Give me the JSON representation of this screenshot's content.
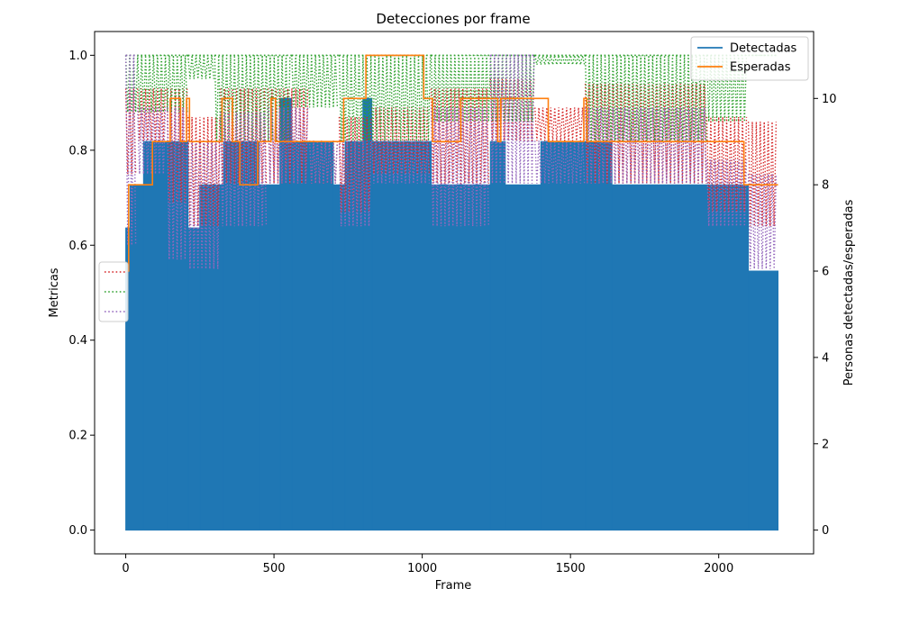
{
  "chart_data": {
    "type": "line",
    "title": "Detecciones por frame",
    "xlabel": "Frame",
    "ylabel_left": "Metricas",
    "ylabel_right": "Personas detectadas/esperadas",
    "xlim": [
      -105,
      2320
    ],
    "ylim_left": [
      -0.05,
      1.05
    ],
    "ylim_right": [
      -0.55,
      11.55
    ],
    "x_ticks": [
      0,
      500,
      1000,
      1500,
      2000
    ],
    "y_ticks_left": [
      0.0,
      0.2,
      0.4,
      0.6,
      0.8,
      1.0
    ],
    "y_ticks_right": [
      0,
      2,
      4,
      6,
      8,
      10
    ],
    "grid": false,
    "legend_right": {
      "placement": "top-right",
      "entries": [
        {
          "label": "Detectadas",
          "color": "#1f77b4"
        },
        {
          "label": "Esperadas",
          "color": "#ff7f0e"
        }
      ]
    },
    "legend_left": {
      "placement": "center-left",
      "entries": [
        {
          "color": "#d62728",
          "style": "dotted"
        },
        {
          "color": "#2ca02c",
          "style": "dotted"
        },
        {
          "color": "#9467bd",
          "style": "dotted"
        }
      ]
    },
    "series": [
      {
        "name": "Detectadas",
        "axis": "right",
        "color": "#1f77b4",
        "style": "oscillating",
        "x_range": [
          0,
          2200
        ],
        "segments": [
          {
            "x": [
              0,
              15
            ],
            "peak": 7
          },
          {
            "x": [
              15,
              60
            ],
            "peak": 8
          },
          {
            "x": [
              60,
              140
            ],
            "peak": 9
          },
          {
            "x": [
              140,
              210
            ],
            "peak": 9
          },
          {
            "x": [
              210,
              250
            ],
            "peak": 7
          },
          {
            "x": [
              250,
              330
            ],
            "peak": 8
          },
          {
            "x": [
              330,
              450
            ],
            "peak": 9
          },
          {
            "x": [
              450,
              520
            ],
            "peak": 8
          },
          {
            "x": [
              520,
              560
            ],
            "peak": 10
          },
          {
            "x": [
              560,
              700
            ],
            "peak": 9
          },
          {
            "x": [
              700,
              740
            ],
            "peak": 8
          },
          {
            "x": [
              740,
              800
            ],
            "peak": 9
          },
          {
            "x": [
              800,
              830
            ],
            "peak": 10
          },
          {
            "x": [
              830,
              1030
            ],
            "peak": 9
          },
          {
            "x": [
              1030,
              1230
            ],
            "peak": 8
          },
          {
            "x": [
              1230,
              1280
            ],
            "peak": 9
          },
          {
            "x": [
              1280,
              1400
            ],
            "peak": 8
          },
          {
            "x": [
              1400,
              1550
            ],
            "peak": 9
          },
          {
            "x": [
              1550,
              1640
            ],
            "peak": 9
          },
          {
            "x": [
              1640,
              1960
            ],
            "peak": 8
          },
          {
            "x": [
              1960,
              2100
            ],
            "peak": 8
          },
          {
            "x": [
              2100,
              2200
            ],
            "peak": 6
          }
        ]
      },
      {
        "name": "Esperadas",
        "axis": "right",
        "color": "#ff7f0e",
        "style": "step",
        "x": [
          0,
          10,
          40,
          45,
          60,
          90,
          100,
          130,
          150,
          165,
          185,
          205,
          215,
          320,
          325,
          350,
          360,
          380,
          385,
          440,
          445,
          480,
          490,
          500,
          505,
          730,
          735,
          800,
          810,
          920,
          925,
          1000,
          1005,
          1030,
          1035,
          1125,
          1130,
          1250,
          1255,
          1260,
          1265,
          1370,
          1375,
          1420,
          1425,
          1540,
          1545,
          1550,
          1555,
          2080,
          2085,
          2095,
          2100,
          2200
        ],
        "y": [
          6,
          8,
          8,
          8,
          8,
          9,
          9,
          9,
          10,
          10,
          9,
          10,
          9,
          9,
          10,
          10,
          9,
          9,
          8,
          8,
          9,
          9,
          10,
          10,
          9,
          9,
          10,
          10,
          11,
          11,
          11,
          11,
          10,
          10,
          9,
          9,
          10,
          10,
          9,
          9,
          10,
          10,
          10,
          10,
          9,
          9,
          10,
          10,
          9,
          9,
          8,
          8,
          8,
          8
        ]
      },
      {
        "name": "",
        "axis": "left",
        "color": "#d62728",
        "style": "dotted-band",
        "segments": [
          {
            "x": [
              0,
              40
            ],
            "lo": 0.75,
            "hi": 0.93
          },
          {
            "x": [
              40,
              140
            ],
            "lo": 0.82,
            "hi": 0.93
          },
          {
            "x": [
              140,
              210
            ],
            "lo": 0.69,
            "hi": 0.93
          },
          {
            "x": [
              210,
              320
            ],
            "lo": 0.64,
            "hi": 0.87
          },
          {
            "x": [
              320,
              480
            ],
            "lo": 0.73,
            "hi": 0.93
          },
          {
            "x": [
              480,
              620
            ],
            "lo": 0.73,
            "hi": 0.93
          },
          {
            "x": [
              620,
              720
            ],
            "lo": 0.73,
            "hi": 0.82
          },
          {
            "x": [
              720,
              830
            ],
            "lo": 0.67,
            "hi": 0.87
          },
          {
            "x": [
              830,
              1030
            ],
            "lo": 0.75,
            "hi": 0.89
          },
          {
            "x": [
              1030,
              1230
            ],
            "lo": 0.73,
            "hi": 0.93
          },
          {
            "x": [
              1230,
              1380
            ],
            "lo": 0.82,
            "hi": 0.95
          },
          {
            "x": [
              1380,
              1550
            ],
            "lo": 0.82,
            "hi": 0.89
          },
          {
            "x": [
              1550,
              1960
            ],
            "lo": 0.73,
            "hi": 0.94
          },
          {
            "x": [
              1960,
              2100
            ],
            "lo": 0.67,
            "hi": 0.87
          },
          {
            "x": [
              2100,
              2200
            ],
            "lo": 0.64,
            "hi": 0.86
          }
        ]
      },
      {
        "name": "",
        "axis": "left",
        "color": "#2ca02c",
        "style": "dotted-band",
        "segments": [
          {
            "x": [
              0,
              210
            ],
            "lo": 0.88,
            "hi": 1.0
          },
          {
            "x": [
              210,
              300
            ],
            "lo": 0.95,
            "hi": 1.0
          },
          {
            "x": [
              300,
              560
            ],
            "lo": 0.82,
            "hi": 1.0
          },
          {
            "x": [
              560,
              720
            ],
            "lo": 0.89,
            "hi": 1.0
          },
          {
            "x": [
              720,
              1030
            ],
            "lo": 0.82,
            "hi": 1.0
          },
          {
            "x": [
              1030,
              1380
            ],
            "lo": 0.86,
            "hi": 1.0
          },
          {
            "x": [
              1380,
              1550
            ],
            "lo": 0.98,
            "hi": 1.0
          },
          {
            "x": [
              1550,
              1960
            ],
            "lo": 0.82,
            "hi": 1.0
          },
          {
            "x": [
              1960,
              2100
            ],
            "lo": 0.86,
            "hi": 1.0
          },
          {
            "x": [
              2100,
              2200
            ],
            "lo": 1.0,
            "hi": 1.0
          }
        ]
      },
      {
        "name": "",
        "axis": "left",
        "color": "#9467bd",
        "style": "dotted-band",
        "segments": [
          {
            "x": [
              0,
              40
            ],
            "lo": 0.6,
            "hi": 1.0
          },
          {
            "x": [
              40,
              140
            ],
            "lo": 0.75,
            "hi": 0.89
          },
          {
            "x": [
              140,
              210
            ],
            "lo": 0.57,
            "hi": 0.89
          },
          {
            "x": [
              210,
              320
            ],
            "lo": 0.55,
            "hi": 0.82
          },
          {
            "x": [
              320,
              480
            ],
            "lo": 0.64,
            "hi": 0.88
          },
          {
            "x": [
              480,
              620
            ],
            "lo": 0.73,
            "hi": 0.89
          },
          {
            "x": [
              620,
              720
            ],
            "lo": 0.73,
            "hi": 0.82
          },
          {
            "x": [
              720,
              830
            ],
            "lo": 0.64,
            "hi": 0.82
          },
          {
            "x": [
              830,
              1030
            ],
            "lo": 0.73,
            "hi": 0.82
          },
          {
            "x": [
              1030,
              1230
            ],
            "lo": 0.64,
            "hi": 0.89
          },
          {
            "x": [
              1230,
              1380
            ],
            "lo": 0.73,
            "hi": 1.0
          },
          {
            "x": [
              1380,
              1550
            ],
            "lo": 0.73,
            "hi": 0.82
          },
          {
            "x": [
              1550,
              1960
            ],
            "lo": 0.73,
            "hi": 0.89
          },
          {
            "x": [
              1960,
              2100
            ],
            "lo": 0.64,
            "hi": 0.78
          },
          {
            "x": [
              2100,
              2200
            ],
            "lo": 0.55,
            "hi": 0.75
          }
        ]
      }
    ]
  }
}
